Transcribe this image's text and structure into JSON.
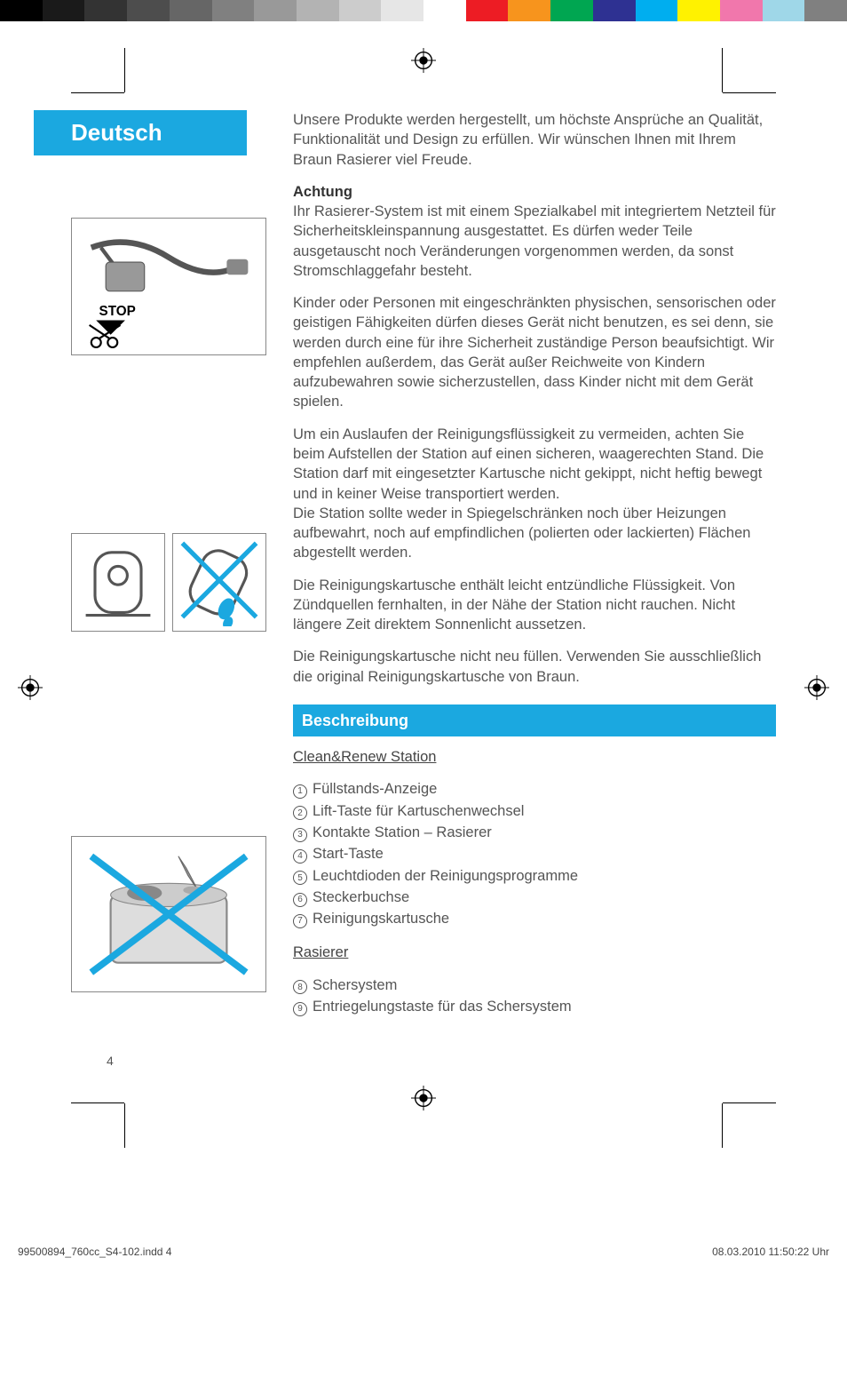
{
  "colorBar": {
    "colors": [
      "#000000",
      "#1a1a1a",
      "#333333",
      "#4d4d4d",
      "#666666",
      "#808080",
      "#999999",
      "#b3b3b3",
      "#cccccc",
      "#e6e6e6",
      "#ffffff",
      "#ed1c24",
      "#f7941d",
      "#00a651",
      "#2e3192",
      "#00aeef",
      "#fff200",
      "#f177ac",
      "#9fd7e8",
      "#808080"
    ]
  },
  "language": "Deutsch",
  "intro": "Unsere Produkte werden hergestellt, um höchste Ansprüche an Qualität, Funktionalität und Design zu erfüllen. Wir wünschen Ihnen mit Ihrem Braun Rasierer viel Freude.",
  "warning": {
    "heading": "Achtung",
    "p1": "Ihr Rasierer-System ist mit einem Spezialkabel mit integriertem Netzteil für Sicherheitskleinspannung ausgestattet. Es dürfen weder Teile ausgetauscht noch Veränderungen vorgenommen werden, da sonst Stromschlaggefahr besteht.",
    "p2": "Kinder oder Personen mit eingeschränkten physischen, sensorischen oder geistigen Fähigkeiten dürfen dieses Gerät nicht benutzen, es sei denn, sie werden durch eine für ihre Sicherheit zuständige Person beaufsichtigt. Wir empfehlen außerdem, das Gerät außer Reichweite von Kindern aufzubewahren sowie sicherzustellen, dass Kinder nicht mit dem Gerät spielen.",
    "p3": "Um ein Auslaufen der Reinigungsflüssigkeit zu vermeiden, achten Sie beim Aufstellen der Station auf einen sicheren, waagerechten Stand. Die Station darf mit eingesetzter Kartusche nicht gekippt, nicht heftig bewegt und in keiner Weise transportiert werden.",
    "p3b": "Die Station sollte weder in Spiegelschränken noch über Heizungen aufbewahrt, noch auf empfindlichen (polierten oder lackierten) Flächen abgestellt werden.",
    "p4": "Die Reinigungskartusche enthält leicht entzündliche Flüssigkeit. Von Zündquellen fernhalten, in der Nähe der Station nicht rauchen. Nicht längere Zeit direktem Sonnenlicht aussetzen.",
    "p5": "Die Reinigungskartusche nicht neu füllen. Verwenden Sie ausschließlich die original Reinigungskartusche von Braun."
  },
  "description": {
    "heading": "Beschreibung",
    "section1": {
      "title": "Clean&Renew Station",
      "items": [
        "Füllstands-Anzeige",
        "Lift-Taste für Kartuschenwechsel",
        "Kontakte Station – Rasierer",
        "Start-Taste",
        "Leuchtdioden der Reinigungsprogramme",
        "Steckerbuchse",
        "Reinigungskartusche"
      ]
    },
    "section2": {
      "title": "Rasierer",
      "startNum": 8,
      "items": [
        "Schersystem",
        "Entriegelungstaste für das Schersystem"
      ]
    }
  },
  "illustrations": {
    "cable_stop_label": "STOP"
  },
  "pageNumber": "4",
  "footer": {
    "filename": "99500894_760cc_S4-102.indd   4",
    "timestamp": "08.03.2010   11:50:22 Uhr"
  }
}
